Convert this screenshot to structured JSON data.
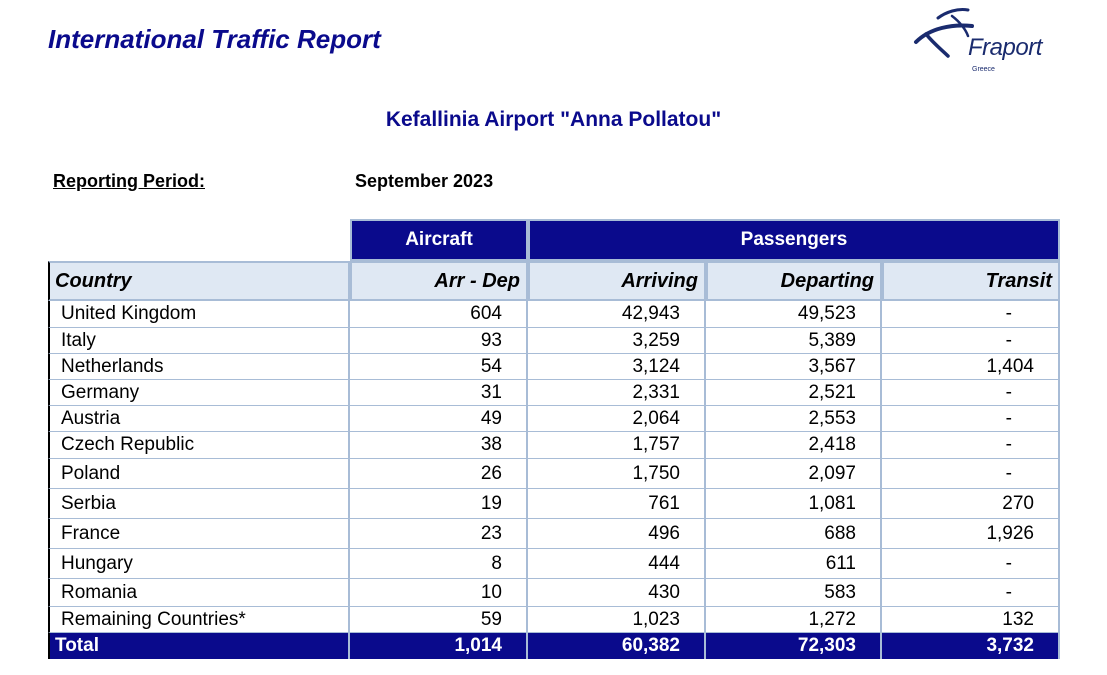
{
  "header": {
    "title": "International Traffic Report",
    "logo_text": "Fraport",
    "logo_subtext": "Greece"
  },
  "airport": "Kefallinia Airport \"Anna Pollatou\"",
  "period": {
    "label": "Reporting Period:",
    "value": "September 2023"
  },
  "table": {
    "groups": {
      "aircraft": "Aircraft",
      "passengers": "Passengers"
    },
    "columns": [
      "Country",
      "Arr - Dep",
      "Arriving",
      "Departing",
      "Transit"
    ],
    "rows": [
      [
        "United Kingdom",
        "604",
        "42,943",
        "49,523",
        "-"
      ],
      [
        "Italy",
        "93",
        "3,259",
        "5,389",
        "-"
      ],
      [
        "Netherlands",
        "54",
        "3,124",
        "3,567",
        "1,404"
      ],
      [
        "Germany",
        "31",
        "2,331",
        "2,521",
        "-"
      ],
      [
        "Austria",
        "49",
        "2,064",
        "2,553",
        "-"
      ],
      [
        "Czech Republic",
        "38",
        "1,757",
        "2,418",
        "-"
      ],
      [
        "Poland",
        "26",
        "1,750",
        "2,097",
        "-"
      ],
      [
        "Serbia",
        "19",
        "761",
        "1,081",
        "270"
      ],
      [
        "France",
        "23",
        "496",
        "688",
        "1,926"
      ],
      [
        "Hungary",
        "8",
        "444",
        "611",
        "-"
      ],
      [
        "Romania",
        "10",
        "430",
        "583",
        "-"
      ],
      [
        "Remaining Countries*",
        "59",
        "1,023",
        "1,272",
        "132"
      ]
    ],
    "total": [
      "Total",
      "1,014",
      "60,382",
      "72,303",
      "3,732"
    ]
  },
  "colors": {
    "primary": "#0a0a8c",
    "header_bg": "#dfe8f3",
    "border": "#a8bcd6"
  }
}
